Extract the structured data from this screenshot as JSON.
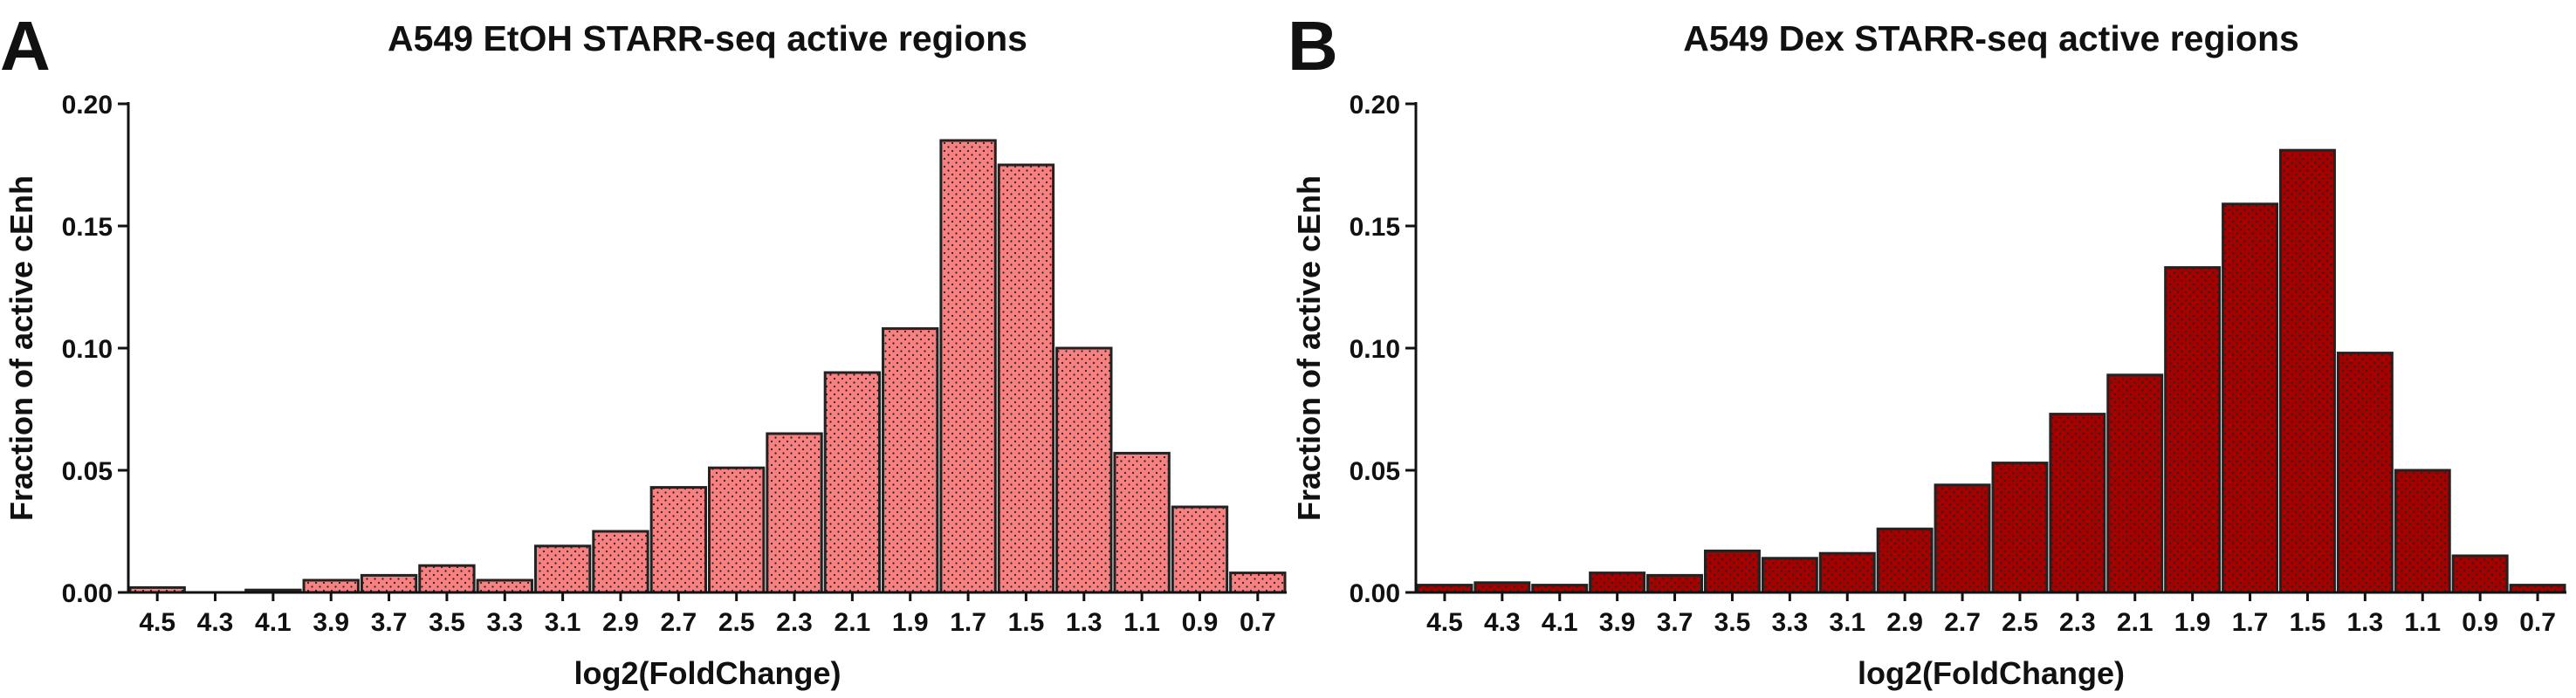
{
  "chart_data": [
    {
      "type": "bar",
      "panel": "A",
      "title": "A549 EtOH STARR-seq active regions",
      "x_label": "log2(FoldChange)",
      "y_label": "Fraction of active cEnh",
      "categories": [
        "4.5",
        "4.3",
        "4.1",
        "3.9",
        "3.7",
        "3.5",
        "3.3",
        "3.1",
        "2.9",
        "2.7",
        "2.5",
        "2.3",
        "2.1",
        "1.9",
        "1.7",
        "1.5",
        "1.3",
        "1.1",
        "0.9",
        "0.7"
      ],
      "values": [
        0.002,
        0,
        0.001,
        0.005,
        0.007,
        0.011,
        0.005,
        0.019,
        0.025,
        0.043,
        0.051,
        0.065,
        0.09,
        0.108,
        0.185,
        0.175,
        0.1,
        0.057,
        0.035,
        0.008
      ],
      "color": "#f88080",
      "ylim": [
        0,
        0.2
      ],
      "yticks": [
        {
          "value": 0,
          "label": "0.00"
        },
        {
          "value": 0.05,
          "label": "0.05"
        },
        {
          "value": 0.1,
          "label": "0.10"
        },
        {
          "value": 0.15,
          "label": "0.15"
        },
        {
          "value": 0.2,
          "label": "0.20"
        }
      ]
    },
    {
      "type": "bar",
      "panel": "B",
      "title": "A549 Dex STARR-seq active regions",
      "x_label": "log2(FoldChange)",
      "y_label": "Fraction of active cEnh",
      "categories": [
        "4.5",
        "4.3",
        "4.1",
        "3.9",
        "3.7",
        "3.5",
        "3.3",
        "3.1",
        "2.9",
        "2.7",
        "2.5",
        "2.3",
        "2.1",
        "1.9",
        "1.7",
        "1.5",
        "1.3",
        "1.1",
        "0.9",
        "0.7"
      ],
      "values": [
        0.003,
        0.004,
        0.003,
        0.008,
        0.007,
        0.017,
        0.014,
        0.016,
        0.026,
        0.044,
        0.053,
        0.073,
        0.089,
        0.133,
        0.159,
        0.181,
        0.098,
        0.05,
        0.015,
        0.003
      ],
      "color": "#a30000",
      "ylim": [
        0,
        0.2
      ],
      "yticks": [
        {
          "value": 0,
          "label": "0.00"
        },
        {
          "value": 0.05,
          "label": "0.05"
        },
        {
          "value": 0.1,
          "label": "0.10"
        },
        {
          "value": 0.15,
          "label": "0.15"
        },
        {
          "value": 0.2,
          "label": "0.20"
        }
      ]
    }
  ]
}
